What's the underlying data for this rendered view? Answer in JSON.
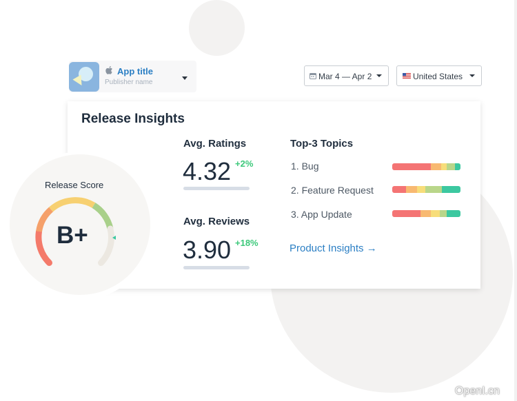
{
  "app_selector": {
    "title": "App title",
    "publisher": "Publisher name"
  },
  "filters": {
    "date_range": "Mar 4 — Apr 2",
    "country": "United States"
  },
  "card": {
    "title": "Release Insights",
    "ratings": {
      "heading": "Avg. Ratings",
      "value": "4.32",
      "delta": "+2%"
    },
    "reviews": {
      "heading": "Avg. Reviews",
      "value": "3.90",
      "delta": "+18%"
    },
    "topics": {
      "heading": "Top-3 Topics",
      "items": [
        {
          "label": "1.  Bug",
          "segments": [
            {
              "pct": 57,
              "color": "#f47474"
            },
            {
              "pct": 15,
              "color": "#f8b971"
            },
            {
              "pct": 8,
              "color": "#f7dd7a"
            },
            {
              "pct": 12,
              "color": "#b9d68a"
            },
            {
              "pct": 8,
              "color": "#3cc8a0"
            }
          ]
        },
        {
          "label": "2.  Feature Request",
          "segments": [
            {
              "pct": 20,
              "color": "#f47474"
            },
            {
              "pct": 16,
              "color": "#f8b971"
            },
            {
              "pct": 13,
              "color": "#f7dd7a"
            },
            {
              "pct": 24,
              "color": "#b9d68a"
            },
            {
              "pct": 27,
              "color": "#3cc8a0"
            }
          ]
        },
        {
          "label": "3.  App Update",
          "segments": [
            {
              "pct": 41,
              "color": "#f47474"
            },
            {
              "pct": 16,
              "color": "#f8b971"
            },
            {
              "pct": 13,
              "color": "#f7dd7a"
            },
            {
              "pct": 10,
              "color": "#b9d68a"
            },
            {
              "pct": 20,
              "color": "#3cc8a0"
            }
          ]
        }
      ]
    },
    "product_link": "Product Insights →"
  },
  "release_score": {
    "title": "Release Score",
    "grade": "B+"
  },
  "colors": {
    "accent": "#2b7fc4",
    "positive": "#3cc87a"
  },
  "watermark": "OpenI.cn"
}
